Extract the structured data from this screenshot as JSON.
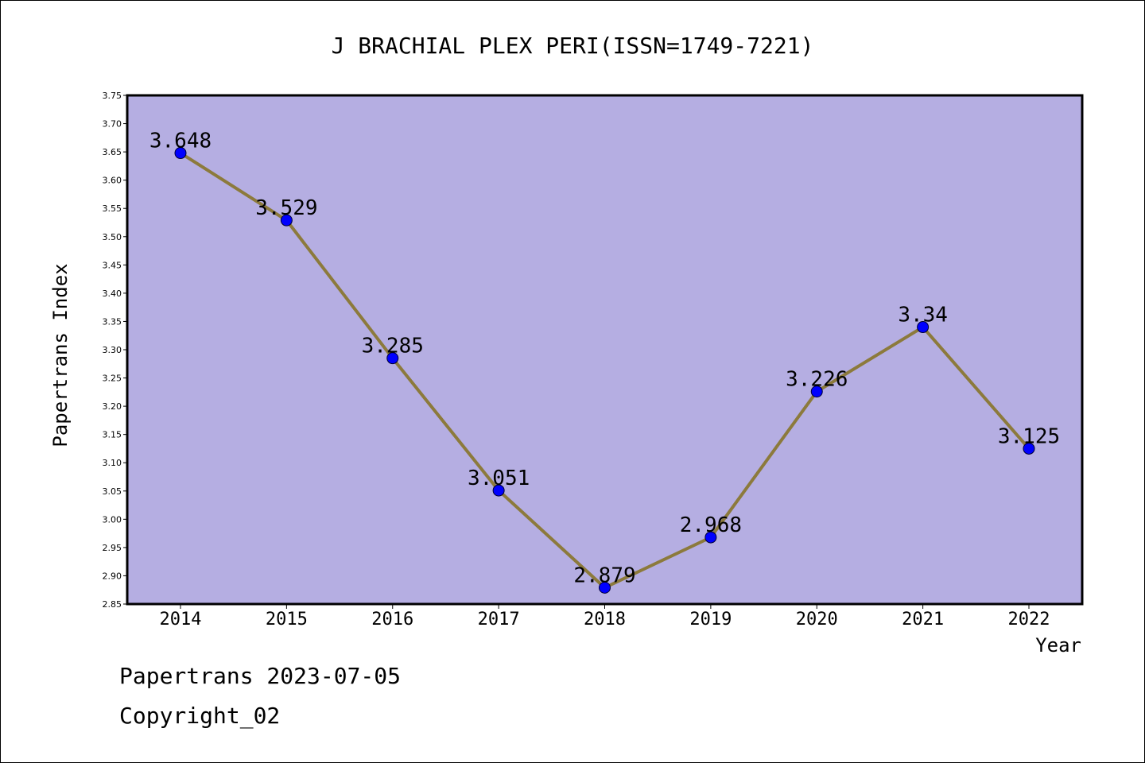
{
  "chart_data": {
    "type": "line",
    "title": "J BRACHIAL PLEX PERI(ISSN=1749-7221)",
    "xlabel": "Year",
    "ylabel": "Papertrans Index",
    "categories": [
      "2014",
      "2015",
      "2016",
      "2017",
      "2018",
      "2019",
      "2020",
      "2021",
      "2022"
    ],
    "series": [
      {
        "values": [
          3.648,
          3.529,
          3.285,
          3.051,
          2.879,
          2.968,
          3.226,
          3.34,
          3.125
        ],
        "data_labels": [
          "3.648",
          "3.529",
          "3.285",
          "3.051",
          "2.879",
          "2.968",
          "3.226",
          "3.34",
          "3.125"
        ]
      }
    ],
    "ylim": [
      2.85,
      3.75
    ],
    "yticks": [
      "2.85",
      "2.90",
      "2.95",
      "3.00",
      "3.05",
      "3.10",
      "3.15",
      "3.20",
      "3.25",
      "3.30",
      "3.35",
      "3.40",
      "3.45",
      "3.50",
      "3.55",
      "3.60",
      "3.65",
      "3.70",
      "3.75"
    ],
    "grid": false,
    "legend": "none",
    "colors": {
      "plot_background": "#b5aee2",
      "line": "#8c7a3c",
      "marker": "#0000ff",
      "axis": "#000000"
    }
  },
  "footer": {
    "date_line": "Papertrans 2023-07-05",
    "copyright_line": "Copyright_02"
  }
}
